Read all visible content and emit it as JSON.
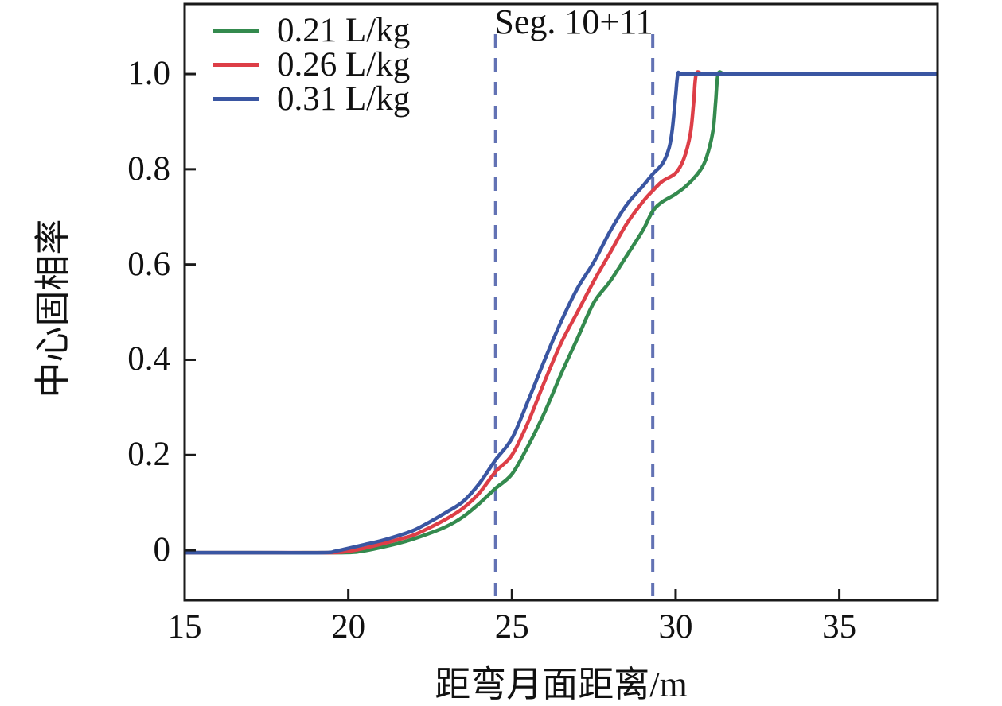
{
  "chart_data": {
    "type": "line",
    "annotation": "Seg. 10+11",
    "xlabel": "距弯月面距离/m",
    "ylabel": "中心固相率",
    "xlim": [
      15,
      38
    ],
    "ylim": [
      -0.105,
      1.147
    ],
    "x_ticks": [
      15,
      20,
      25,
      30,
      35
    ],
    "x_tick_labels": [
      "15",
      "20",
      "25",
      "30",
      "35"
    ],
    "y_ticks": [
      0,
      0.2,
      0.4,
      0.6,
      0.8,
      1.0
    ],
    "y_tick_labels": [
      "0",
      "0.2",
      "0.4",
      "0.6",
      "0.8",
      "1.0"
    ],
    "grid": false,
    "legend_position": "top-left",
    "axis_color": "#1a1a1a",
    "reference_lines": {
      "x_values": [
        24.5,
        29.3
      ],
      "style": "dashed",
      "color": "#6272b4",
      "label": "Seg. 10+11"
    },
    "series": [
      {
        "name": "0.21 L/kg",
        "color": "#348a4e",
        "points": [
          [
            15,
            -0.005
          ],
          [
            17,
            -0.005
          ],
          [
            19.8,
            -0.005
          ],
          [
            20.4,
            -0.002
          ],
          [
            20.8,
            0.003
          ],
          [
            21.5,
            0.014
          ],
          [
            22,
            0.024
          ],
          [
            22.5,
            0.036
          ],
          [
            23,
            0.05
          ],
          [
            23.5,
            0.07
          ],
          [
            24,
            0.098
          ],
          [
            24.5,
            0.13
          ],
          [
            25,
            0.16
          ],
          [
            25.5,
            0.22
          ],
          [
            26,
            0.29
          ],
          [
            26.5,
            0.37
          ],
          [
            27,
            0.445
          ],
          [
            27.5,
            0.52
          ],
          [
            28,
            0.565
          ],
          [
            28.5,
            0.618
          ],
          [
            29,
            0.672
          ],
          [
            29.3,
            0.712
          ],
          [
            29.6,
            0.732
          ],
          [
            30,
            0.748
          ],
          [
            30.4,
            0.77
          ],
          [
            30.8,
            0.803
          ],
          [
            31,
            0.838
          ],
          [
            31.15,
            0.885
          ],
          [
            31.22,
            0.94
          ],
          [
            31.3,
            1.0
          ],
          [
            31.5,
            1.0
          ],
          [
            32,
            1.0
          ],
          [
            34,
            1.0
          ],
          [
            38,
            1.0
          ]
        ]
      },
      {
        "name": "0.26 L/kg",
        "color": "#dd3e47",
        "points": [
          [
            15,
            -0.005
          ],
          [
            17,
            -0.005
          ],
          [
            19.4,
            -0.005
          ],
          [
            20,
            -0.002
          ],
          [
            20.4,
            0.003
          ],
          [
            21,
            0.013
          ],
          [
            21.5,
            0.022
          ],
          [
            22,
            0.032
          ],
          [
            22.5,
            0.048
          ],
          [
            23,
            0.066
          ],
          [
            23.5,
            0.088
          ],
          [
            24,
            0.12
          ],
          [
            24.5,
            0.165
          ],
          [
            25,
            0.2
          ],
          [
            25.5,
            0.27
          ],
          [
            26,
            0.355
          ],
          [
            26.5,
            0.435
          ],
          [
            27,
            0.5
          ],
          [
            27.5,
            0.565
          ],
          [
            28,
            0.625
          ],
          [
            28.5,
            0.685
          ],
          [
            29,
            0.732
          ],
          [
            29.3,
            0.755
          ],
          [
            29.6,
            0.775
          ],
          [
            30,
            0.792
          ],
          [
            30.25,
            0.822
          ],
          [
            30.45,
            0.875
          ],
          [
            30.55,
            0.94
          ],
          [
            30.63,
            1.0
          ],
          [
            30.85,
            1.0
          ],
          [
            31.5,
            1.0
          ],
          [
            34,
            1.0
          ],
          [
            38,
            1.0
          ]
        ]
      },
      {
        "name": "0.31 L/kg",
        "color": "#3a56a2",
        "points": [
          [
            15,
            -0.005
          ],
          [
            17,
            -0.005
          ],
          [
            19.2,
            -0.005
          ],
          [
            19.6,
            -0.002
          ],
          [
            20,
            0.004
          ],
          [
            20.5,
            0.012
          ],
          [
            21,
            0.02
          ],
          [
            21.5,
            0.03
          ],
          [
            22,
            0.042
          ],
          [
            22.5,
            0.06
          ],
          [
            23,
            0.08
          ],
          [
            23.5,
            0.102
          ],
          [
            24,
            0.14
          ],
          [
            24.5,
            0.19
          ],
          [
            25,
            0.235
          ],
          [
            25.5,
            0.315
          ],
          [
            26,
            0.4
          ],
          [
            26.5,
            0.48
          ],
          [
            27,
            0.55
          ],
          [
            27.5,
            0.605
          ],
          [
            28,
            0.67
          ],
          [
            28.5,
            0.725
          ],
          [
            29,
            0.765
          ],
          [
            29.3,
            0.79
          ],
          [
            29.6,
            0.812
          ],
          [
            29.8,
            0.845
          ],
          [
            29.9,
            0.885
          ],
          [
            30,
            0.955
          ],
          [
            30.07,
            1.0
          ],
          [
            30.2,
            1.0
          ],
          [
            31,
            1.0
          ],
          [
            34,
            1.0
          ],
          [
            38,
            1.0
          ]
        ]
      }
    ]
  }
}
